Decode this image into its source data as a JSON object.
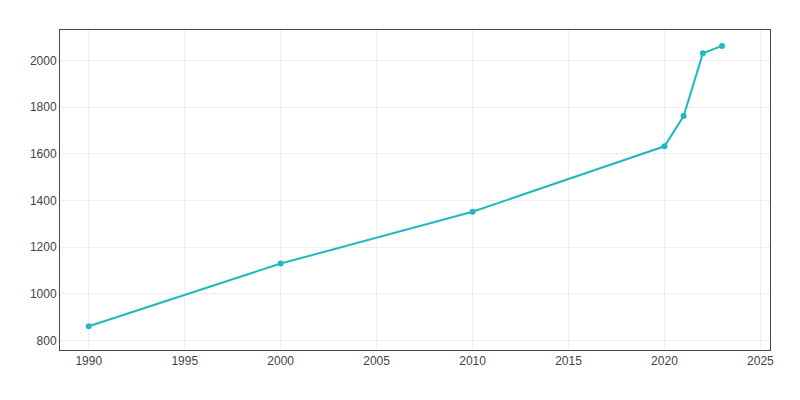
{
  "chart_data": {
    "type": "line",
    "x": [
      1990,
      2000,
      2010,
      2020,
      2021,
      2022,
      2023
    ],
    "values": [
      862,
      1130,
      1352,
      1632,
      1762,
      2030,
      2062
    ],
    "color": "#22b8c0",
    "marker": "circle",
    "xlim": [
      1988.5,
      2025.5
    ],
    "ylim": [
      760,
      2130
    ],
    "xticks": [
      1990,
      1995,
      2000,
      2005,
      2010,
      2015,
      2020,
      2025
    ],
    "yticks": [
      800,
      1000,
      1200,
      1400,
      1600,
      1800,
      2000
    ],
    "grid": true
  }
}
